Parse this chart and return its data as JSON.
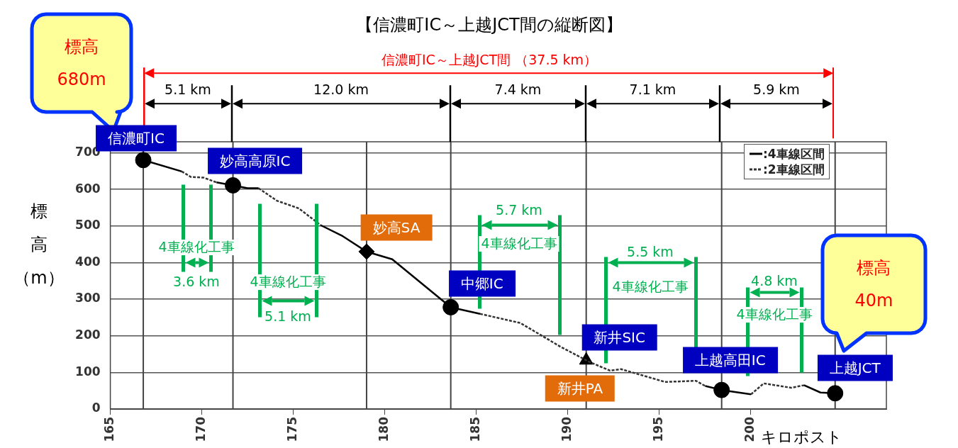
{
  "chart_data": {
    "type": "line",
    "title": "【信濃町IC～上越JCT間の縦断図】",
    "xlabel": "キロポスト",
    "ylabel": "標高（m）",
    "xlim": [
      165,
      207.4
    ],
    "xticks": [
      165,
      170,
      175,
      180,
      185,
      190,
      195,
      200
    ],
    "ylim": [
      0,
      730
    ],
    "yticks": [
      0,
      100,
      200,
      300,
      400,
      500,
      600,
      700
    ],
    "grid": "y",
    "legend": "top right",
    "series": [
      {
        "name": ":4車線区間",
        "color": "#000000",
        "line_style": "solid",
        "marker": "none",
        "x": [
          166.8,
          168.9,
          170.1,
          170.8,
          171.7,
          172.5,
          173.1,
          174.1,
          176.5,
          177.7,
          179.0,
          180.4,
          183.6,
          185.2,
          191.0,
          197.5,
          198.4,
          200.0,
          202.2,
          202.9,
          203.8,
          204.6
        ],
        "values": [
          680,
          649,
          null,
          619,
          611,
          603,
          603,
          null,
          502,
          472,
          430,
          409,
          278,
          260,
          null,
          63,
          52,
          40,
          null,
          65,
          45,
          43
        ]
      },
      {
        "name": ":2車線区間",
        "color": "#333333",
        "line_style": "dashed",
        "marker": "none",
        "x": [
          168.9,
          169.4,
          170.1,
          170.8,
          171.7,
          173.1,
          174.1,
          175.3,
          176.5,
          179.0,
          185.2,
          187.4,
          189.6,
          191.2,
          192.3,
          192.9,
          195.3,
          197.0,
          197.5,
          198.4,
          200.0,
          200.7,
          202.2,
          202.9
        ],
        "values": [
          649,
          634,
          632,
          619,
          null,
          603,
          569,
          548,
          502,
          null,
          260,
          235,
          170,
          128,
          105,
          109,
          74,
          77,
          63,
          null,
          40,
          70,
          58,
          65
        ]
      },
      {
        "type": "scatter",
        "color": "#000000",
        "marker": "circle",
        "x": [
          166.8,
          171.7,
          183.6,
          198.4,
          204.6
        ],
        "values": [
          680,
          611,
          278,
          52,
          43
        ]
      },
      {
        "type": "scatter",
        "color": "#000000",
        "marker": "diamond",
        "x": [
          179.0
        ],
        "values": [
          430
        ]
      },
      {
        "type": "scatter",
        "color": "#000000",
        "marker": "triangle",
        "x": [
          191.0
        ],
        "values": [
          133
        ]
      }
    ],
    "ref_lines": [
      {
        "axis": "x",
        "value": 166.8,
        "label": "信濃町IC"
      },
      {
        "axis": "x",
        "value": 171.7,
        "label": "妙高高原IC"
      },
      {
        "axis": "x",
        "value": 179.0,
        "label": "妙高SA"
      },
      {
        "axis": "x",
        "value": 183.6,
        "label": "中郷IC"
      },
      {
        "axis": "x",
        "value": 191.0,
        "label": "新井SIC"
      },
      {
        "axis": "x",
        "value": 198.4,
        "label": "上越高田IC"
      },
      {
        "axis": "x",
        "value": 204.6,
        "label": "上越JCT"
      }
    ],
    "annotations": [
      "信濃町IC～上越JCT間 （37.5 km）",
      "5.1 km",
      "12.0 km",
      "7.4 km",
      "7.1 km",
      "5.9 km",
      "3.6 km",
      "5.1 km",
      "5.7 km",
      "5.5 km",
      "4.8 km",
      "4車線化工事",
      "4車線化工事",
      "4車線化工事",
      "4車線化工事",
      "4車線化工事",
      "新井PA",
      "標高\n680m",
      "標高\n40m"
    ]
  }
}
